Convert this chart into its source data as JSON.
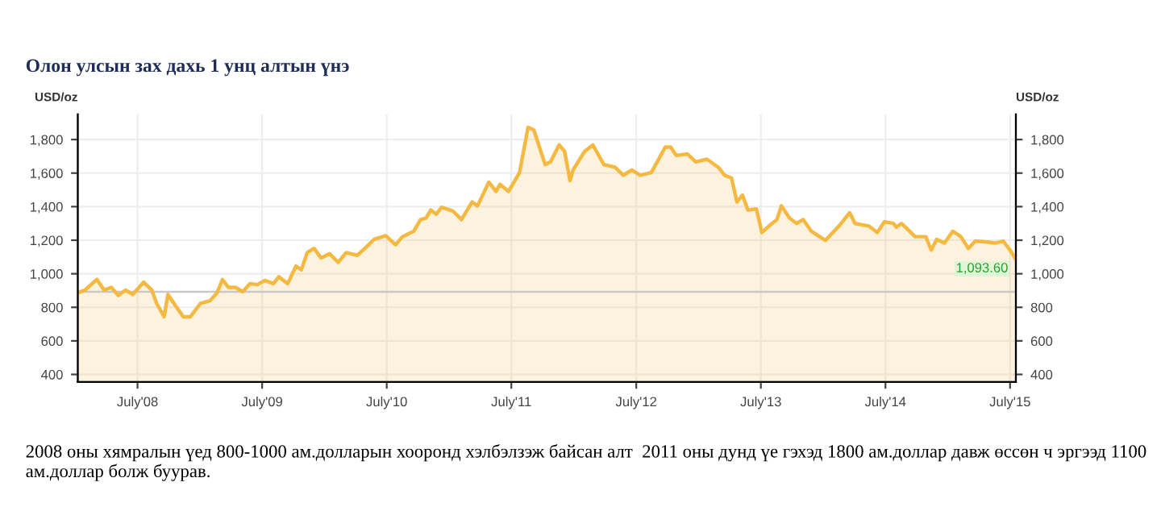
{
  "chart_data": {
    "type": "area",
    "title": "Олон улсын зах дахь 1 унц алтын үнэ",
    "ylabel": "USD/oz",
    "y2label": "USD/oz",
    "x": [
      "2008-01-08",
      "2008-01-29",
      "2008-03-04",
      "2008-03-25",
      "2008-04-15",
      "2008-05-06",
      "2008-05-27",
      "2008-06-17",
      "2008-07-19",
      "2008-08-12",
      "2008-08-26",
      "2008-09-17",
      "2008-09-28",
      "2008-10-21",
      "2008-11-12",
      "2008-12-03",
      "2009-01-01",
      "2009-01-29",
      "2009-02-19",
      "2009-03-07",
      "2009-03-24",
      "2009-04-14",
      "2009-05-05",
      "2009-05-26",
      "2009-06-17",
      "2009-07-09",
      "2009-08-03",
      "2009-08-19",
      "2009-09-14",
      "2009-10-08",
      "2009-10-24",
      "2009-11-10",
      "2009-11-30",
      "2009-12-21",
      "2010-01-15",
      "2010-02-09",
      "2010-03-04",
      "2010-04-06",
      "2010-05-01",
      "2010-05-25",
      "2010-06-28",
      "2010-07-27",
      "2010-08-16",
      "2010-09-18",
      "2010-10-08",
      "2010-10-24",
      "2010-11-07",
      "2010-11-23",
      "2010-12-09",
      "2011-01-11",
      "2011-02-05",
      "2011-03-08",
      "2011-03-24",
      "2011-04-26",
      "2011-05-17",
      "2011-05-29",
      "2011-06-23",
      "2011-07-25",
      "2011-08-19",
      "2011-09-05",
      "2011-10-08",
      "2011-10-24",
      "2011-11-18",
      "2011-12-04",
      "2011-12-20",
      "2011-12-29",
      "2012-02-01",
      "2012-02-25",
      "2012-03-28",
      "2012-04-30",
      "2012-05-24",
      "2012-06-18",
      "2012-07-12",
      "2012-08-14",
      "2012-09-24",
      "2012-10-10",
      "2012-10-26",
      "2012-11-28",
      "2012-12-22",
      "2013-01-24",
      "2013-02-26",
      "2013-03-17",
      "2013-04-06",
      "2013-04-22",
      "2013-05-08",
      "2013-05-24",
      "2013-06-18",
      "2013-07-04",
      "2013-07-28",
      "2013-08-17",
      "2013-08-30",
      "2013-09-23",
      "2013-10-14",
      "2013-11-02",
      "2013-11-26",
      "2014-01-06",
      "2014-02-15",
      "2014-03-18",
      "2014-04-03",
      "2014-05-13",
      "2014-06-07",
      "2014-06-28",
      "2014-07-24",
      "2014-08-02",
      "2014-08-17",
      "2014-09-26",
      "2014-10-27",
      "2014-11-12",
      "2014-11-28",
      "2014-12-21",
      "2015-01-14",
      "2015-02-07",
      "2015-03-01",
      "2015-03-21",
      "2015-04-25",
      "2015-05-18",
      "2015-06-11",
      "2015-07-04",
      "2015-07-15"
    ],
    "series": [
      {
        "color": "#f5b942",
        "values": [
          887,
          903,
          966,
          903,
          919,
          871,
          903,
          877,
          950,
          903,
          823,
          744,
          877,
          807,
          744,
          744,
          823,
          839,
          887,
          966,
          919,
          919,
          893,
          941,
          935,
          960,
          941,
          982,
          941,
          1046,
          1024,
          1126,
          1151,
          1094,
          1119,
          1068,
          1126,
          1110,
          1157,
          1205,
          1227,
          1173,
          1221,
          1253,
          1323,
          1332,
          1380,
          1355,
          1396,
          1374,
          1323,
          1428,
          1405,
          1546,
          1491,
          1533,
          1491,
          1603,
          1873,
          1857,
          1651,
          1667,
          1768,
          1730,
          1555,
          1619,
          1730,
          1768,
          1651,
          1635,
          1587,
          1619,
          1587,
          1603,
          1755,
          1755,
          1705,
          1714,
          1667,
          1683,
          1635,
          1587,
          1571,
          1428,
          1469,
          1380,
          1386,
          1246,
          1291,
          1323,
          1405,
          1332,
          1300,
          1323,
          1253,
          1199,
          1285,
          1364,
          1300,
          1285,
          1246,
          1310,
          1300,
          1278,
          1300,
          1221,
          1221,
          1141,
          1205,
          1183,
          1253,
          1221,
          1151,
          1195,
          1189,
          1183,
          1195,
          1132,
          1093.6
        ]
      }
    ],
    "xlim": [
      "2008-01-08",
      "2015-07-18"
    ],
    "xticks": [
      {
        "value": "2008-07-01",
        "label": "July'08"
      },
      {
        "value": "2009-07-01",
        "label": "July'09"
      },
      {
        "value": "2010-07-01",
        "label": "July'10"
      },
      {
        "value": "2011-07-01",
        "label": "July'11"
      },
      {
        "value": "2012-07-01",
        "label": "July'12"
      },
      {
        "value": "2013-07-01",
        "label": "July'13"
      },
      {
        "value": "2014-07-01",
        "label": "July'14"
      },
      {
        "value": "2015-07-01",
        "label": "July'15"
      }
    ],
    "ylim": [
      355,
      1950
    ],
    "yticks": [
      {
        "value": 400,
        "label": "400"
      },
      {
        "value": 600,
        "label": "600"
      },
      {
        "value": 800,
        "label": "800"
      },
      {
        "value": 1000,
        "label": "1,000"
      },
      {
        "value": 1200,
        "label": "1,200"
      },
      {
        "value": 1400,
        "label": "1,400"
      },
      {
        "value": 1600,
        "label": "1,600"
      },
      {
        "value": 1800,
        "label": "1,800"
      }
    ],
    "y2lim": [
      355,
      1950
    ],
    "y2ticks": [
      {
        "value": 400,
        "label": "400"
      },
      {
        "value": 600,
        "label": "600"
      },
      {
        "value": 800,
        "label": "800"
      },
      {
        "value": 1000,
        "label": "1,000"
      },
      {
        "value": 1200,
        "label": "1,200"
      },
      {
        "value": 1400,
        "label": "1,400"
      },
      {
        "value": 1600,
        "label": "1,600"
      },
      {
        "value": 1800,
        "label": "1,800"
      }
    ],
    "ref_lines": [
      {
        "axis": "y",
        "value": 893,
        "color": "#c8c8c8"
      }
    ],
    "grid": true,
    "annotations": [
      {
        "text": "1,093.60",
        "x": "2015-07-15",
        "y": 1093.6
      },
      "2008 оны хямралын үед 800-1000 ам.долларын хооронд хэлбэлзэж байсан алт  2011 оны дунд үе гэхэд 1800 ам.доллар давж өссөн ч эргээд 1100 ам.доллар болж буурав."
    ]
  }
}
